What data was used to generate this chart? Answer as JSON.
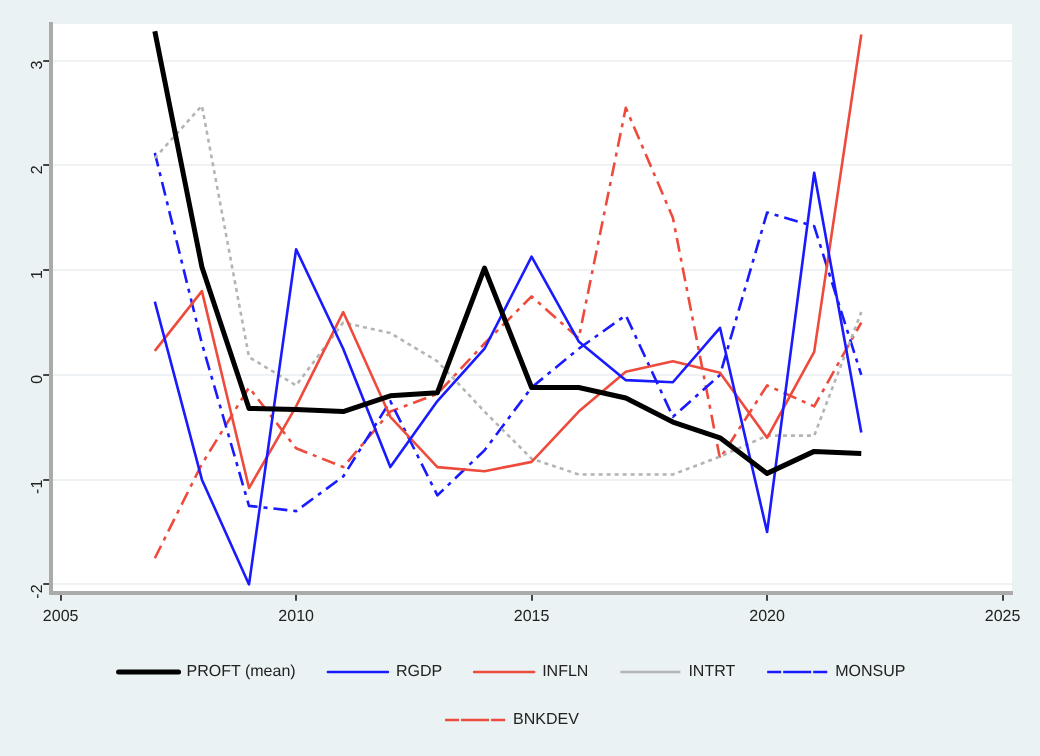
{
  "chart_data": {
    "type": "line",
    "x": [
      2007,
      2008,
      2009,
      2010,
      2011,
      2012,
      2013,
      2014,
      2015,
      2016,
      2017,
      2018,
      2019,
      2020,
      2021,
      2022
    ],
    "series": [
      {
        "name": "PROFT (mean)",
        "color": "#000000",
        "line_style": "solid",
        "values": [
          3.28,
          1.03,
          -0.32,
          -0.33,
          -0.35,
          -0.2,
          -0.17,
          1.02,
          -0.12,
          -0.12,
          -0.22,
          -0.45,
          -0.6,
          -0.94,
          -0.73,
          -0.75
        ]
      },
      {
        "name": "RGDP",
        "color": "#1a1aff",
        "line_style": "solid",
        "values": [
          0.7,
          -1.0,
          -2.0,
          1.2,
          0.25,
          -0.88,
          -0.25,
          0.25,
          1.13,
          0.32,
          -0.05,
          -0.07,
          0.45,
          -1.5,
          1.93,
          -0.55
        ]
      },
      {
        "name": "INFLN",
        "color": "#ee4b3d",
        "line_style": "solid",
        "values": [
          0.23,
          0.8,
          -1.08,
          -0.3,
          0.6,
          -0.4,
          -0.88,
          -0.92,
          -0.83,
          -0.35,
          0.03,
          0.13,
          0.02,
          -0.6,
          0.22,
          3.25
        ]
      },
      {
        "name": "INTRT",
        "color": "#b4b4b4",
        "line_style": "dotted",
        "values": [
          2.07,
          2.57,
          0.17,
          -0.1,
          0.5,
          0.4,
          0.13,
          -0.35,
          -0.8,
          -0.95,
          -0.95,
          -0.95,
          -0.78,
          -0.58,
          -0.58,
          0.6
        ]
      },
      {
        "name": "MONSUP",
        "color": "#1a1aff",
        "line_style": "dashed",
        "values": [
          2.12,
          0.3,
          -1.25,
          -1.3,
          -0.97,
          -0.25,
          -1.15,
          -0.72,
          -0.12,
          0.25,
          0.57,
          -0.4,
          0.0,
          1.55,
          1.42,
          0.0
        ]
      },
      {
        "name": "BNKDEV",
        "color": "#ee4b3d",
        "line_style": "dashed",
        "values": [
          -1.75,
          -0.85,
          -0.12,
          -0.7,
          -0.88,
          -0.35,
          -0.18,
          0.3,
          0.75,
          0.35,
          2.55,
          1.5,
          -0.8,
          -0.1,
          -0.3,
          0.5
        ]
      }
    ],
    "xlim": [
      2004.8,
      2025.2
    ],
    "xticks": [
      2005,
      2010,
      2015,
      2020,
      2025
    ],
    "ylim": [
      -2.08,
      3.35
    ],
    "yticks": [
      -2,
      -1,
      0,
      1,
      2,
      3
    ],
    "grid": "y",
    "legend": "bottom",
    "marker": "none"
  }
}
